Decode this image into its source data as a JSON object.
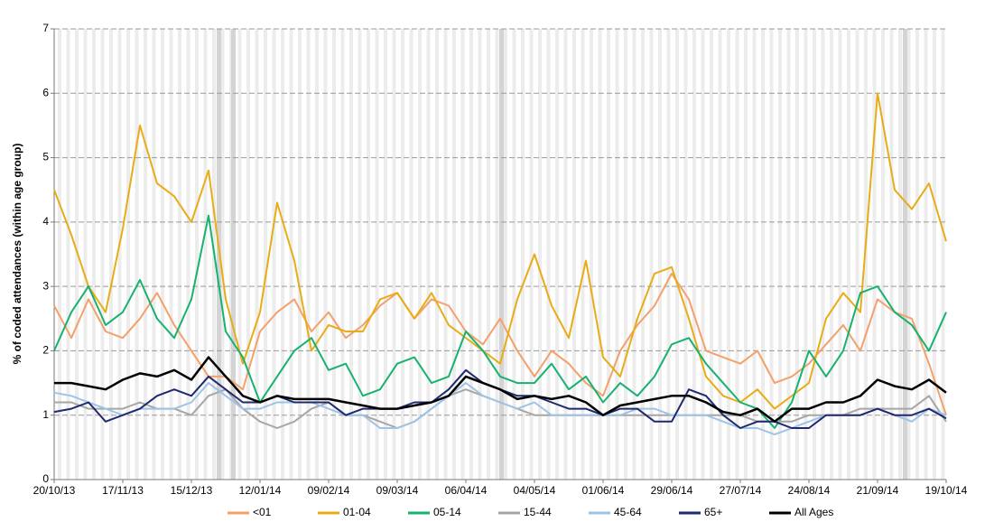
{
  "chart_data": {
    "type": "line",
    "y_label": "% of coded attendances (within age group)",
    "categories": [
      "20/10/13",
      null,
      null,
      null,
      "17/11/13",
      null,
      null,
      null,
      "15/12/13",
      null,
      null,
      null,
      "12/01/14",
      null,
      null,
      null,
      "09/02/14",
      null,
      null,
      null,
      "09/03/14",
      null,
      null,
      null,
      "06/04/14",
      null,
      null,
      null,
      "04/05/14",
      null,
      null,
      null,
      "01/06/14",
      null,
      null,
      null,
      "29/06/14",
      null,
      null,
      null,
      "27/07/14",
      null,
      null,
      null,
      "24/08/14",
      null,
      null,
      null,
      "21/09/14",
      null,
      null,
      null,
      "19/10/14"
    ],
    "ylim": [
      0,
      7
    ],
    "yticks": [
      0,
      1,
      2,
      3,
      4,
      5,
      6,
      7
    ],
    "grid": true,
    "legend": "bottom",
    "series": [
      {
        "name": "<01",
        "color": "#f4a06b",
        "values": [
          2.7,
          2.2,
          2.8,
          2.3,
          2.2,
          2.5,
          2.9,
          2.4,
          2.0,
          1.6,
          1.6,
          1.4,
          2.3,
          2.6,
          2.8,
          2.3,
          2.6,
          2.2,
          2.4,
          2.7,
          2.9,
          2.5,
          2.8,
          2.7,
          2.3,
          2.1,
          2.5,
          2.0,
          1.6,
          2.0,
          1.8,
          1.5,
          1.3,
          2.0,
          2.4,
          2.7,
          3.2,
          2.8,
          2.0,
          1.9,
          1.8,
          2.0,
          1.5,
          1.6,
          1.8,
          2.1,
          2.4,
          2.0,
          2.8,
          2.6,
          2.5,
          1.8,
          1.0
        ]
      },
      {
        "name": "01-04",
        "color": "#e8ac16",
        "values": [
          4.5,
          3.8,
          3.0,
          2.6,
          3.9,
          5.5,
          4.6,
          4.4,
          4.0,
          4.8,
          2.8,
          1.8,
          2.6,
          4.3,
          3.4,
          2.0,
          2.4,
          2.3,
          2.3,
          2.8,
          2.9,
          2.5,
          2.9,
          2.4,
          2.2,
          2.0,
          1.8,
          2.8,
          3.5,
          2.7,
          2.2,
          3.4,
          1.9,
          1.6,
          2.5,
          3.2,
          3.3,
          2.5,
          1.6,
          1.3,
          1.2,
          1.4,
          1.1,
          1.3,
          1.5,
          2.5,
          2.9,
          2.6,
          6.0,
          4.5,
          4.2,
          4.6,
          3.7
        ]
      },
      {
        "name": "05-14",
        "color": "#17b26f",
        "values": [
          2.0,
          2.6,
          3.0,
          2.4,
          2.6,
          3.1,
          2.5,
          2.2,
          2.8,
          4.1,
          2.3,
          1.9,
          1.2,
          1.6,
          2.0,
          2.2,
          1.7,
          1.8,
          1.3,
          1.4,
          1.8,
          1.9,
          1.5,
          1.6,
          2.3,
          2.0,
          1.6,
          1.5,
          1.5,
          1.8,
          1.4,
          1.6,
          1.2,
          1.5,
          1.3,
          1.6,
          2.1,
          2.2,
          1.8,
          1.5,
          1.2,
          1.1,
          0.8,
          1.2,
          2.0,
          1.6,
          2.0,
          2.9,
          3.0,
          2.6,
          2.4,
          2.0,
          2.6
        ]
      },
      {
        "name": "15-44",
        "color": "#a6a6a6",
        "values": [
          1.2,
          1.2,
          1.1,
          1.1,
          1.1,
          1.2,
          1.1,
          1.1,
          1.0,
          1.3,
          1.4,
          1.1,
          0.9,
          0.8,
          0.9,
          1.1,
          1.2,
          1.0,
          1.0,
          0.9,
          0.8,
          0.9,
          1.1,
          1.3,
          1.4,
          1.3,
          1.2,
          1.1,
          1.0,
          1.0,
          1.0,
          1.0,
          1.0,
          1.0,
          1.0,
          1.0,
          1.0,
          1.0,
          1.0,
          1.0,
          1.0,
          0.9,
          0.9,
          0.9,
          1.0,
          1.0,
          1.0,
          1.1,
          1.1,
          1.1,
          1.1,
          1.3,
          0.9
        ]
      },
      {
        "name": "45-64",
        "color": "#9dc3e6",
        "values": [
          1.35,
          1.3,
          1.2,
          1.1,
          1.0,
          1.1,
          1.1,
          1.1,
          1.2,
          1.5,
          1.3,
          1.1,
          1.1,
          1.2,
          1.2,
          1.2,
          1.1,
          1.0,
          1.0,
          0.8,
          0.8,
          0.9,
          1.1,
          1.3,
          1.5,
          1.3,
          1.2,
          1.1,
          1.2,
          1.0,
          1.0,
          1.0,
          1.0,
          1.0,
          1.1,
          1.1,
          1.0,
          1.0,
          1.0,
          0.9,
          0.8,
          0.8,
          0.7,
          0.8,
          0.9,
          1.0,
          1.0,
          1.0,
          1.1,
          1.0,
          0.9,
          1.1,
          1.0
        ]
      },
      {
        "name": "65+",
        "color": "#1f2a6e",
        "values": [
          1.05,
          1.1,
          1.2,
          0.9,
          1.0,
          1.1,
          1.3,
          1.4,
          1.3,
          1.6,
          1.4,
          1.2,
          1.2,
          1.3,
          1.2,
          1.2,
          1.2,
          1.0,
          1.1,
          1.1,
          1.1,
          1.2,
          1.2,
          1.4,
          1.7,
          1.5,
          1.4,
          1.3,
          1.3,
          1.2,
          1.1,
          1.1,
          1.0,
          1.1,
          1.1,
          0.9,
          0.9,
          1.4,
          1.3,
          1.0,
          0.8,
          0.9,
          0.9,
          0.8,
          0.8,
          1.0,
          1.0,
          1.0,
          1.1,
          1.0,
          1.0,
          1.1,
          0.95
        ]
      },
      {
        "name": "All Ages",
        "color": "#000000",
        "values": [
          1.5,
          1.5,
          1.45,
          1.4,
          1.55,
          1.65,
          1.6,
          1.7,
          1.55,
          1.9,
          1.6,
          1.3,
          1.2,
          1.3,
          1.25,
          1.25,
          1.25,
          1.2,
          1.15,
          1.1,
          1.1,
          1.15,
          1.2,
          1.3,
          1.6,
          1.5,
          1.4,
          1.25,
          1.3,
          1.25,
          1.3,
          1.2,
          1.0,
          1.15,
          1.2,
          1.25,
          1.3,
          1.3,
          1.2,
          1.05,
          1.0,
          1.1,
          0.9,
          1.1,
          1.1,
          1.2,
          1.2,
          1.3,
          1.55,
          1.45,
          1.4,
          1.55,
          1.35
        ]
      }
    ]
  }
}
